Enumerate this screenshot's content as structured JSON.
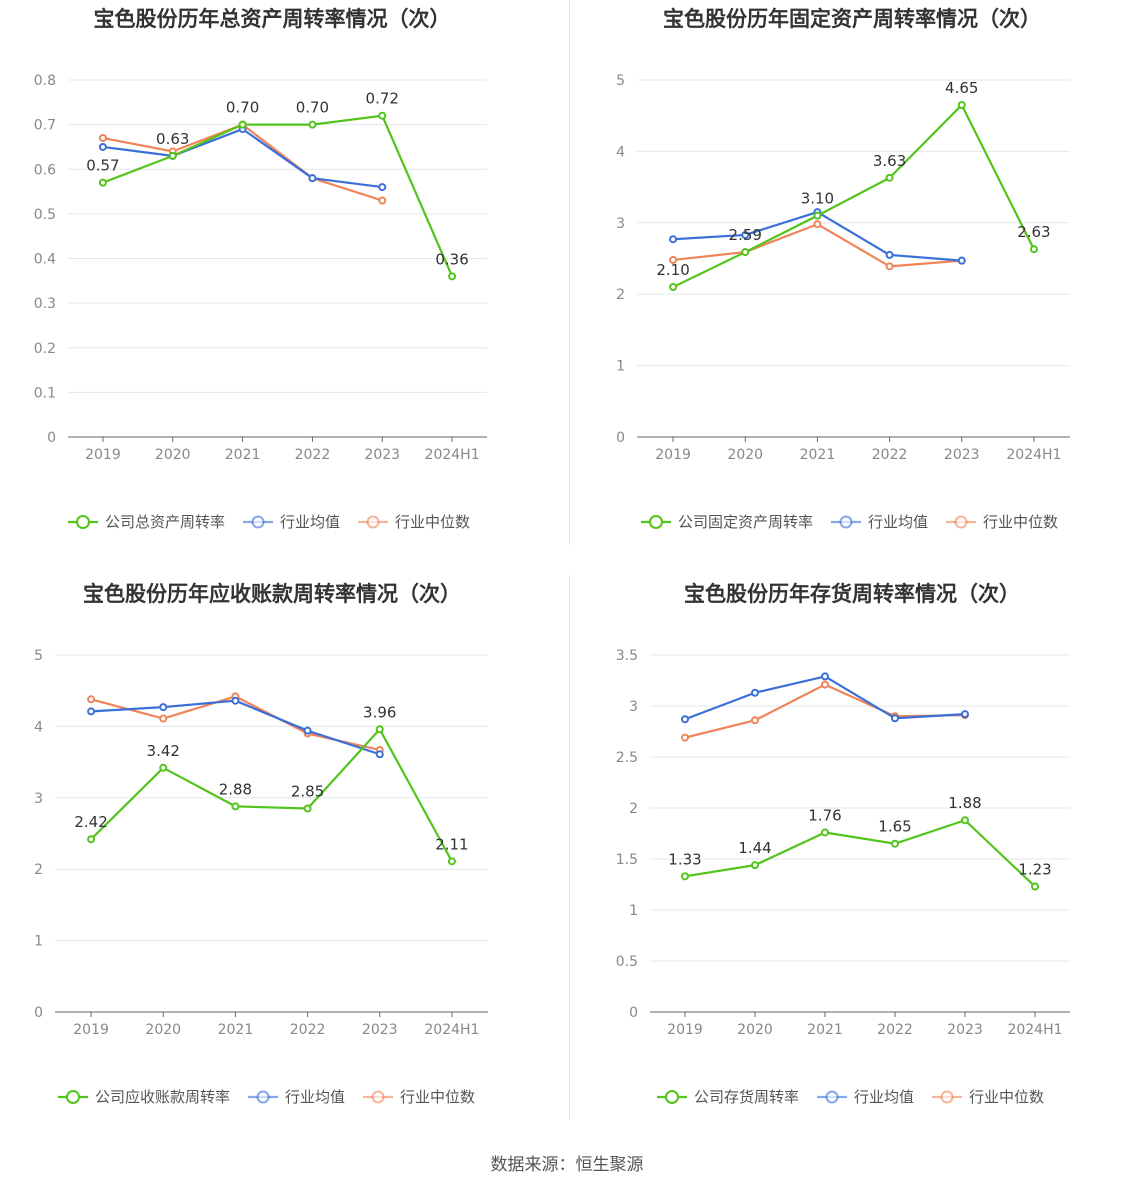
{
  "colors": {
    "company": "#52c41a",
    "average": "#3b6fd8",
    "median": "#f08458",
    "grid": "#e4e7ee",
    "axis": "#666666",
    "tick": "#888888",
    "title": "#333333"
  },
  "legend_labels": {
    "average": "行业均值",
    "median": "行业中位数"
  },
  "footer": {
    "source": "数据来源：恒生聚源"
  },
  "chart_data": [
    {
      "type": "line",
      "title": "宝色股份历年总资产周转率情况（次）",
      "categories": [
        "2019",
        "2020",
        "2021",
        "2022",
        "2023",
        "2024H1"
      ],
      "y_ticks": [
        "0",
        "0.1",
        "0.2",
        "0.3",
        "0.4",
        "0.5",
        "0.6",
        "0.7",
        "0.8"
      ],
      "ylim": [
        0,
        0.8
      ],
      "series": [
        {
          "key": "company",
          "name": "公司总资产周转率",
          "values": [
            0.57,
            0.63,
            0.7,
            0.7,
            0.72,
            0.36
          ],
          "labels": [
            "0.57",
            "0.63",
            "0.70",
            "0.70",
            "0.72",
            "0.36"
          ]
        },
        {
          "key": "average",
          "name": "行业均值",
          "values": [
            0.65,
            0.63,
            0.69,
            0.58,
            0.56,
            null
          ]
        },
        {
          "key": "median",
          "name": "行业中位数",
          "values": [
            0.67,
            0.64,
            0.7,
            0.58,
            0.53,
            null
          ]
        }
      ]
    },
    {
      "type": "line",
      "title": "宝色股份历年固定资产周转率情况（次）",
      "categories": [
        "2019",
        "2020",
        "2021",
        "2022",
        "2023",
        "2024H1"
      ],
      "y_ticks": [
        "0",
        "1",
        "2",
        "3",
        "4",
        "5"
      ],
      "ylim": [
        0,
        5
      ],
      "series": [
        {
          "key": "company",
          "name": "公司固定资产周转率",
          "values": [
            2.1,
            2.59,
            3.1,
            3.63,
            4.65,
            2.63
          ],
          "labels": [
            "2.10",
            "2.59",
            "3.10",
            "3.63",
            "4.65",
            "2.63"
          ]
        },
        {
          "key": "average",
          "name": "行业均值",
          "values": [
            2.77,
            2.83,
            3.15,
            2.55,
            2.47,
            null
          ]
        },
        {
          "key": "median",
          "name": "行业中位数",
          "values": [
            2.48,
            2.59,
            2.98,
            2.39,
            2.47,
            null
          ]
        }
      ]
    },
    {
      "type": "line",
      "title": "宝色股份历年应收账款周转率情况（次）",
      "categories": [
        "2019",
        "2020",
        "2021",
        "2022",
        "2023",
        "2024H1"
      ],
      "y_ticks": [
        "0",
        "1",
        "2",
        "3",
        "4",
        "5"
      ],
      "ylim": [
        0,
        5
      ],
      "series": [
        {
          "key": "company",
          "name": "公司应收账款周转率",
          "values": [
            2.42,
            3.42,
            2.88,
            2.85,
            3.96,
            2.11
          ],
          "labels": [
            "2.42",
            "3.42",
            "2.88",
            "2.85",
            "3.96",
            "2.11"
          ]
        },
        {
          "key": "average",
          "name": "行业均值",
          "values": [
            4.21,
            4.27,
            4.36,
            3.94,
            3.61,
            null
          ]
        },
        {
          "key": "median",
          "name": "行业中位数",
          "values": [
            4.38,
            4.11,
            4.42,
            3.9,
            3.67,
            null
          ]
        }
      ]
    },
    {
      "type": "line",
      "title": "宝色股份历年存货周转率情况（次）",
      "categories": [
        "2019",
        "2020",
        "2021",
        "2022",
        "2023",
        "2024H1"
      ],
      "y_ticks": [
        "0",
        "0.5",
        "1",
        "1.5",
        "2",
        "2.5",
        "3",
        "3.5"
      ],
      "ylim": [
        0,
        3.5
      ],
      "series": [
        {
          "key": "company",
          "name": "公司存货周转率",
          "values": [
            1.33,
            1.44,
            1.76,
            1.65,
            1.88,
            1.23
          ],
          "labels": [
            "1.33",
            "1.44",
            "1.76",
            "1.65",
            "1.88",
            "1.23"
          ]
        },
        {
          "key": "average",
          "name": "行业均值",
          "values": [
            2.87,
            3.13,
            3.29,
            2.88,
            2.92,
            null
          ]
        },
        {
          "key": "median",
          "name": "行业中位数",
          "values": [
            2.69,
            2.86,
            3.21,
            2.9,
            2.91,
            null
          ]
        }
      ]
    }
  ]
}
